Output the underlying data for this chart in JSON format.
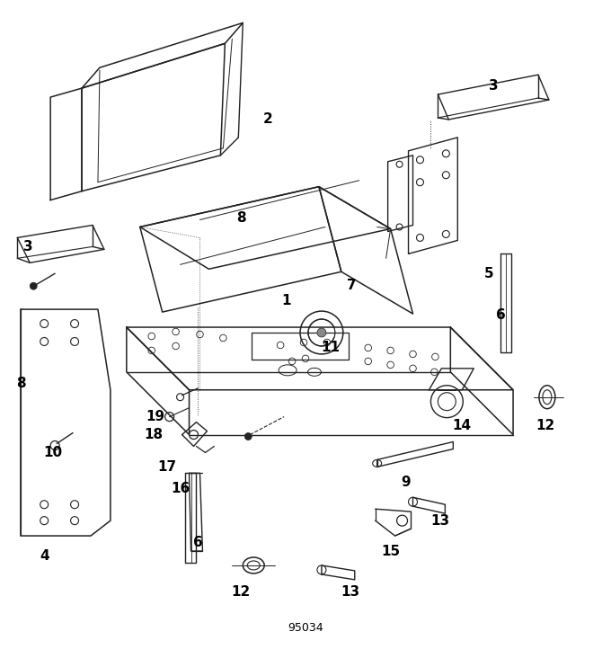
{
  "background_color": "#ffffff",
  "line_color": "#222222",
  "label_color": "#000000",
  "part_number_label": "95034",
  "figsize": [
    6.8,
    7.42
  ],
  "dpi": 100
}
